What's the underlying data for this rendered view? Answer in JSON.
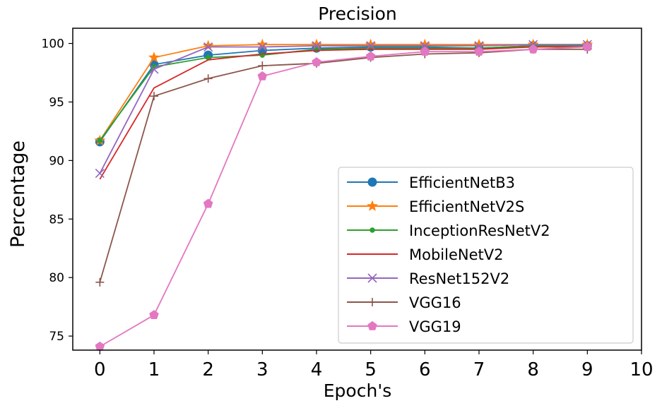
{
  "chart_data": {
    "type": "line",
    "title": "Precision",
    "xlabel": "Epoch's",
    "ylabel": "Percentage",
    "xlim": [
      -0.5,
      10
    ],
    "ylim": [
      73.8,
      101.3
    ],
    "xticks": [
      0,
      1,
      2,
      3,
      4,
      5,
      6,
      7,
      8,
      9,
      10
    ],
    "yticks": [
      75,
      80,
      85,
      90,
      95,
      100
    ],
    "grid": false,
    "legend_position": "lower-right",
    "x": [
      0,
      1,
      2,
      3,
      4,
      5,
      6,
      7,
      8,
      9
    ],
    "series": [
      {
        "name": "EfficientNetB3",
        "color": "#1f77b4",
        "marker": "circle",
        "values": [
          91.6,
          98.2,
          99.0,
          99.4,
          99.6,
          99.7,
          99.7,
          99.6,
          99.8,
          99.8
        ]
      },
      {
        "name": "EfficientNetV2S",
        "color": "#ff7f0e",
        "marker": "star",
        "values": [
          91.7,
          98.8,
          99.8,
          99.9,
          99.9,
          99.9,
          99.9,
          99.9,
          99.9,
          99.9
        ]
      },
      {
        "name": "InceptionResNetV2",
        "color": "#2ca02c",
        "marker": "point",
        "values": [
          91.7,
          98.0,
          98.8,
          99.0,
          99.5,
          99.6,
          99.6,
          99.6,
          99.8,
          99.8
        ]
      },
      {
        "name": "MobileNetV2",
        "color": "#d62728",
        "marker": "none",
        "values": [
          88.4,
          96.2,
          98.6,
          99.1,
          99.4,
          99.5,
          99.5,
          99.5,
          99.7,
          99.7
        ]
      },
      {
        "name": "ResNet152V2",
        "color": "#9467bd",
        "marker": "x",
        "values": [
          88.9,
          97.8,
          99.7,
          99.7,
          99.8,
          99.8,
          99.8,
          99.8,
          99.9,
          99.9
        ]
      },
      {
        "name": "VGG16",
        "color": "#8c564b",
        "marker": "plus",
        "values": [
          79.6,
          95.5,
          97.0,
          98.1,
          98.3,
          98.8,
          99.1,
          99.2,
          99.5,
          99.5
        ]
      },
      {
        "name": "VGG19",
        "color": "#e377c2",
        "marker": "pentagon",
        "values": [
          74.1,
          76.8,
          86.3,
          97.2,
          98.4,
          98.9,
          99.3,
          99.3,
          99.5,
          99.7
        ]
      }
    ]
  }
}
